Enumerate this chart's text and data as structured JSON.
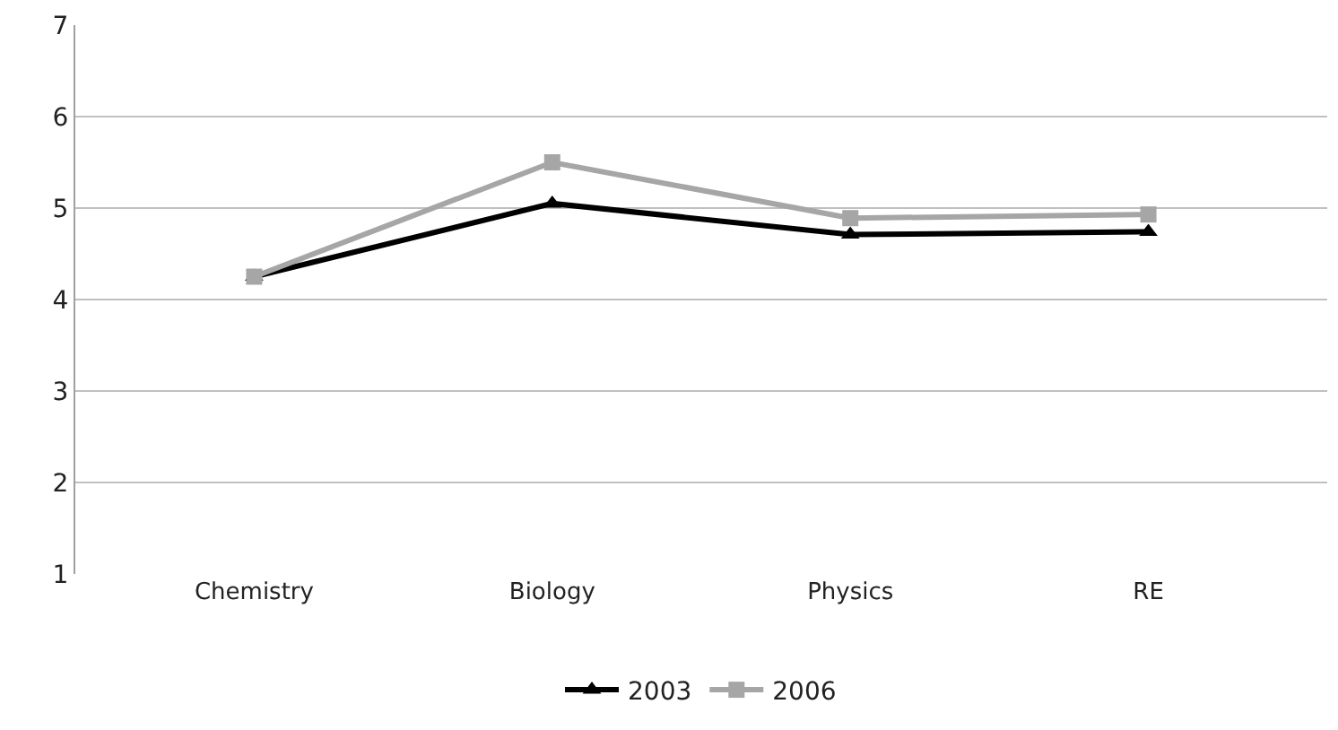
{
  "chart_data": {
    "type": "line",
    "categories": [
      "Chemistry",
      "Biology",
      "Physics",
      "RE"
    ],
    "series": [
      {
        "name": "2003",
        "color": "#000000",
        "marker": "triangle",
        "values": [
          4.25,
          5.05,
          4.71,
          4.74
        ]
      },
      {
        "name": "2006",
        "color": "#a6a6a6",
        "marker": "square",
        "values": [
          4.25,
          5.5,
          4.89,
          4.93
        ]
      }
    ],
    "ylim": [
      1,
      7
    ],
    "yticks": [
      1,
      2,
      3,
      4,
      5,
      6,
      7
    ],
    "grid": "y",
    "legend": "bottom",
    "line_style": "solid"
  }
}
